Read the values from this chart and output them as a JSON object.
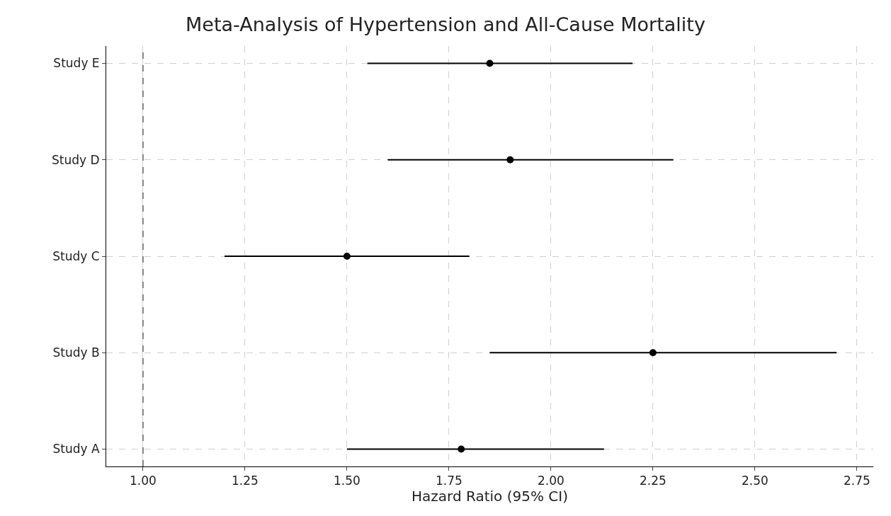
{
  "chart_data": {
    "type": "scatter",
    "orientation": "horizontal",
    "title": "Meta-Analysis of Hypertension and All-Cause Mortality",
    "xlabel": "Hazard Ratio (95% CI)",
    "categories": [
      "Study E",
      "Study D",
      "Study C",
      "Study B",
      "Study A"
    ],
    "series": [
      {
        "color": "#000000",
        "values": [
          1.85,
          1.9,
          1.5,
          2.25,
          1.78
        ],
        "errors": [
          [
            1.55,
            2.2
          ],
          [
            1.6,
            2.3
          ],
          [
            1.2,
            1.8
          ],
          [
            1.85,
            2.7
          ],
          [
            1.5,
            2.13
          ]
        ]
      }
    ],
    "xlim": [
      0.91,
      2.79
    ],
    "xticks": [
      {
        "value": 1.0,
        "label": "1.00"
      },
      {
        "value": 1.25,
        "label": "1.25"
      },
      {
        "value": 1.5,
        "label": "1.50"
      },
      {
        "value": 1.75,
        "label": "1.75"
      },
      {
        "value": 2.0,
        "label": "2.00"
      },
      {
        "value": 2.25,
        "label": "2.25"
      },
      {
        "value": 2.5,
        "label": "2.50"
      },
      {
        "value": 2.75,
        "label": "2.75"
      }
    ],
    "ref_lines": [
      {
        "axis": "x",
        "value": 1.0,
        "color": "#808080",
        "line_style": "dashed"
      }
    ],
    "grid": true,
    "marker": "circle"
  }
}
